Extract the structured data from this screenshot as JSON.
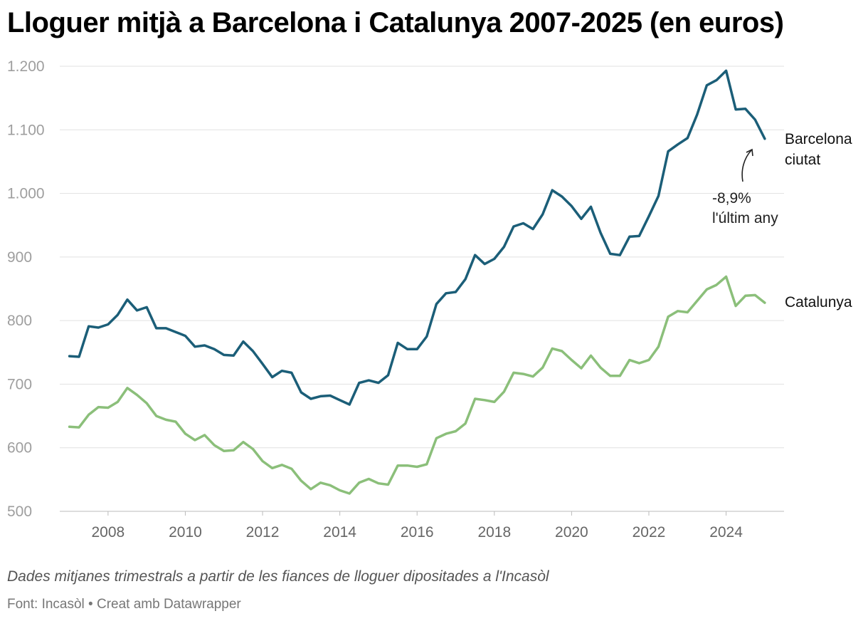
{
  "title": "Lloguer mitjà a Barcelona i Catalunya 2007-2025 (en euros)",
  "footer": {
    "description": "Dades mitjanes trimestrals a partir de les fiances de lloguer dipositades a l'Incasòl",
    "source": "Font: Incasòl • Creat amb Datawrapper"
  },
  "annotation": {
    "line1": "-8,9%",
    "line2": "l'últim any"
  },
  "chart_data": {
    "type": "line",
    "title": "Lloguer mitjà a Barcelona i Catalunya 2007-2025 (en euros)",
    "xlabel": "",
    "ylabel": "",
    "xlim": [
      2006.75,
      2025.5
    ],
    "ylim": [
      500,
      1200
    ],
    "y_ticks": [
      500,
      600,
      700,
      800,
      900,
      1000,
      1100,
      1200
    ],
    "y_tick_labels": [
      "500",
      "600",
      "700",
      "800",
      "900",
      "1.000",
      "1.100",
      "1.200"
    ],
    "x_ticks": [
      2008,
      2010,
      2012,
      2014,
      2016,
      2018,
      2020,
      2022,
      2024
    ],
    "x_tick_labels": [
      "2008",
      "2010",
      "2012",
      "2014",
      "2016",
      "2018",
      "2020",
      "2022",
      "2024"
    ],
    "grid": true,
    "legend": "direct labels at line ends",
    "x": [
      2007.0,
      2007.25,
      2007.5,
      2007.75,
      2008.0,
      2008.25,
      2008.5,
      2008.75,
      2009.0,
      2009.25,
      2009.5,
      2009.75,
      2010.0,
      2010.25,
      2010.5,
      2010.75,
      2011.0,
      2011.25,
      2011.5,
      2011.75,
      2012.0,
      2012.25,
      2012.5,
      2012.75,
      2013.0,
      2013.25,
      2013.5,
      2013.75,
      2014.0,
      2014.25,
      2014.5,
      2014.75,
      2015.0,
      2015.25,
      2015.5,
      2015.75,
      2016.0,
      2016.25,
      2016.5,
      2016.75,
      2017.0,
      2017.25,
      2017.5,
      2017.75,
      2018.0,
      2018.25,
      2018.5,
      2018.75,
      2019.0,
      2019.25,
      2019.5,
      2019.75,
      2020.0,
      2020.25,
      2020.5,
      2020.75,
      2021.0,
      2021.25,
      2021.5,
      2021.75,
      2022.0,
      2022.25,
      2022.5,
      2022.75,
      2023.0,
      2023.25,
      2023.5,
      2023.75,
      2024.0,
      2024.25,
      2024.5,
      2024.75,
      2025.0
    ],
    "series": [
      {
        "name": "Barcelona ciutat",
        "color": "#1b5e78",
        "values": [
          744,
          743,
          791,
          789,
          794,
          809,
          833,
          816,
          821,
          788,
          788,
          782,
          776,
          759,
          761,
          755,
          746,
          745,
          767,
          752,
          732,
          711,
          721,
          718,
          687,
          677,
          681,
          682,
          675,
          668,
          702,
          706,
          702,
          714,
          765,
          755,
          755,
          775,
          826,
          843,
          845,
          865,
          903,
          889,
          897,
          916,
          948,
          953,
          944,
          967,
          1005,
          995,
          980,
          960,
          979,
          938,
          905,
          903,
          932,
          933,
          964,
          996,
          1066,
          1077,
          1087,
          1124,
          1170,
          1178,
          1193,
          1132,
          1133,
          1116,
          1086
        ]
      },
      {
        "name": "Catalunya",
        "color": "#8bbf7a",
        "values": [
          633,
          632,
          652,
          664,
          663,
          672,
          694,
          683,
          670,
          650,
          644,
          641,
          622,
          612,
          620,
          604,
          595,
          596,
          609,
          598,
          579,
          568,
          573,
          567,
          548,
          535,
          545,
          541,
          533,
          528,
          545,
          551,
          544,
          542,
          572,
          572,
          570,
          574,
          615,
          622,
          626,
          638,
          677,
          675,
          672,
          688,
          718,
          716,
          712,
          726,
          756,
          752,
          738,
          725,
          745,
          726,
          713,
          713,
          738,
          733,
          738,
          759,
          806,
          815,
          813,
          831,
          849,
          856,
          869,
          823,
          839,
          840,
          828
        ]
      }
    ]
  }
}
